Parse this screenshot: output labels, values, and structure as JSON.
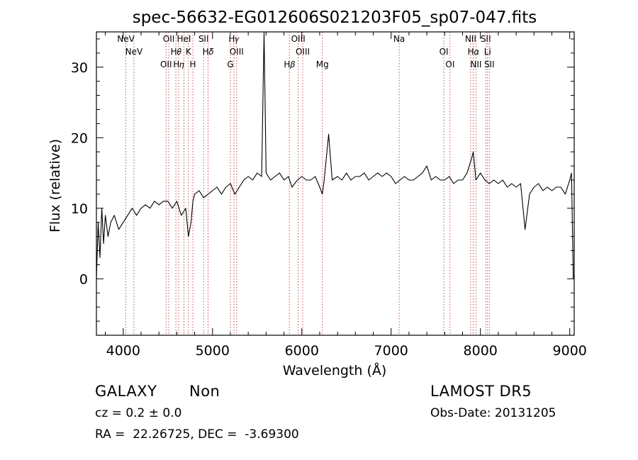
{
  "chart_data": {
    "type": "line",
    "title": "spec-56632-EG012606S021203F05_sp07-047.fits",
    "xlabel": "Wavelength (Å)",
    "ylabel": "Flux (relative)",
    "xlim": [
      3700,
      9050
    ],
    "ylim": [
      -8,
      35
    ],
    "x_ticks": [
      4000,
      5000,
      6000,
      7000,
      8000,
      9000
    ],
    "y_ticks": [
      0,
      10,
      20,
      30
    ],
    "grid": false,
    "line_color": "#000000",
    "marker_line_color": "#b22222",
    "series": [
      {
        "x": [
          3700,
          3720,
          3740,
          3760,
          3780,
          3800,
          3830,
          3860,
          3900,
          3950,
          4000,
          4050,
          4100,
          4150,
          4200,
          4250,
          4300,
          4350,
          4400,
          4450,
          4500,
          4550,
          4600,
          4650,
          4700,
          4730,
          4760,
          4780,
          4800,
          4850,
          4900,
          4950,
          5000,
          5050,
          5100,
          5150,
          5200,
          5250,
          5300,
          5350,
          5400,
          5450,
          5500,
          5550,
          5577,
          5600,
          5650,
          5700,
          5750,
          5800,
          5850,
          5890,
          5950,
          6000,
          6050,
          6100,
          6150,
          6200,
          6230,
          6250,
          6300,
          6340,
          6400,
          6450,
          6500,
          6550,
          6600,
          6650,
          6700,
          6750,
          6800,
          6850,
          6900,
          6950,
          7000,
          7050,
          7100,
          7150,
          7200,
          7250,
          7300,
          7350,
          7400,
          7450,
          7500,
          7550,
          7600,
          7650,
          7700,
          7750,
          7800,
          7850,
          7900,
          7920,
          7950,
          8000,
          8050,
          8100,
          8150,
          8200,
          8250,
          8300,
          8350,
          8400,
          8450,
          8500,
          8550,
          8600,
          8650,
          8700,
          8750,
          8800,
          8850,
          8900,
          8950,
          9000,
          9020,
          9040
        ],
        "y": [
          0,
          8,
          3,
          10,
          5,
          9,
          6,
          8,
          9,
          7,
          8,
          9,
          10,
          9,
          10,
          10.5,
          10,
          11,
          10.5,
          11,
          11,
          10,
          11,
          9,
          10,
          6,
          8,
          11,
          12,
          12.5,
          11.5,
          12,
          12.5,
          13,
          12,
          13,
          13.5,
          12,
          13,
          14,
          14.5,
          14,
          15,
          14.5,
          35,
          15,
          14,
          14.5,
          15,
          14,
          14.5,
          13,
          14,
          14.5,
          14,
          14,
          14.5,
          13,
          12,
          14,
          20.5,
          14,
          14.5,
          14,
          15,
          14,
          14.5,
          14.5,
          15,
          14,
          14.5,
          15,
          14.5,
          15,
          14.5,
          13.5,
          14,
          14.5,
          14,
          14,
          14.5,
          15,
          16,
          14,
          14.5,
          14,
          14,
          14.5,
          13.5,
          14,
          14,
          15,
          17,
          18,
          14,
          15,
          14,
          13.5,
          14,
          13.5,
          14,
          13,
          13.5,
          13,
          13.5,
          7,
          12,
          13,
          13.5,
          12.5,
          13,
          12.5,
          13,
          13,
          12,
          14,
          15,
          0
        ]
      }
    ],
    "lines": [
      {
        "x": 4030,
        "labels": [
          "NeV"
        ]
      },
      {
        "x": 4120,
        "labels": [
          "NeV"
        ]
      },
      {
        "x": 4480,
        "labels": [
          "OII"
        ]
      },
      {
        "x": 4510,
        "labels": [
          "OII"
        ]
      },
      {
        "x": 4590,
        "labels": [
          "H𝜃"
        ]
      },
      {
        "x": 4620,
        "labels": [
          "H𝜂"
        ]
      },
      {
        "x": 4680,
        "labels": [
          "HeI"
        ]
      },
      {
        "x": 4730,
        "labels": [
          "K"
        ]
      },
      {
        "x": 4780,
        "labels": [
          "H"
        ]
      },
      {
        "x": 4900,
        "labels": [
          "SII"
        ]
      },
      {
        "x": 4950,
        "labels": [
          "H𝛿"
        ]
      },
      {
        "x": 5200,
        "labels": [
          "G"
        ]
      },
      {
        "x": 5240,
        "labels": [
          "H𝛾"
        ]
      },
      {
        "x": 5270,
        "labels": [
          "OIII"
        ]
      },
      {
        "x": 5860,
        "labels": [
          "H𝛽"
        ]
      },
      {
        "x": 5960,
        "labels": [
          "OIII"
        ]
      },
      {
        "x": 6010,
        "labels": [
          "OIII"
        ]
      },
      {
        "x": 6230,
        "labels": [
          "Mg"
        ]
      },
      {
        "x": 7090,
        "labels": [
          "Na"
        ]
      },
      {
        "x": 7590,
        "labels": [
          "OI"
        ]
      },
      {
        "x": 7660,
        "labels": [
          "OI"
        ]
      },
      {
        "x": 7890,
        "labels": [
          "NII"
        ]
      },
      {
        "x": 7920,
        "labels": [
          "H𝛼"
        ]
      },
      {
        "x": 7950,
        "labels": [
          "NII"
        ]
      },
      {
        "x": 8060,
        "labels": [
          "SII"
        ]
      },
      {
        "x": 8080,
        "labels": [
          "Li"
        ]
      },
      {
        "x": 8100,
        "labels": [
          "SII"
        ]
      }
    ]
  },
  "info": {
    "object_class": "GALAXY",
    "subclass": "Non",
    "survey": "LAMOST DR5",
    "cz_line": "cz = 0.2 ± 0.0",
    "obs_date_line": "Obs-Date: 20131205",
    "coords_line": "RA =  22.26725, DEC =  -3.69300"
  }
}
